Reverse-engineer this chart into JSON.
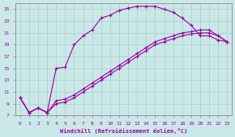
{
  "xlabel": "Windchill (Refroidissement éolien,°C)",
  "bg_color": "#cbe8e8",
  "line_color": "#990099",
  "grid_color": "#aacccc",
  "xlim": [
    -0.5,
    23.5
  ],
  "ylim": [
    7,
    26
  ],
  "xticks": [
    0,
    1,
    2,
    3,
    4,
    5,
    6,
    7,
    8,
    9,
    10,
    11,
    12,
    13,
    14,
    15,
    16,
    17,
    18,
    19,
    20,
    21,
    22,
    23
  ],
  "yticks": [
    7,
    9,
    11,
    13,
    15,
    17,
    19,
    21,
    23,
    25
  ],
  "curve1_x": [
    0,
    1,
    2,
    3,
    4,
    5,
    6,
    7,
    8,
    9,
    10,
    11,
    12,
    13,
    14,
    15,
    16,
    17,
    18,
    19,
    20,
    21,
    22,
    23
  ],
  "curve1_y": [
    10,
    7.5,
    8.3,
    7.5,
    15,
    15.2,
    19,
    20.5,
    21.5,
    23.5,
    24,
    24.8,
    25.2,
    25.5,
    25.5,
    25.5,
    25.0,
    24.5,
    23.5,
    22.3,
    20.5,
    20.5,
    19.8,
    19.5
  ],
  "curve2_x": [
    0,
    1,
    2,
    3,
    4,
    5,
    6,
    7,
    8,
    9,
    10,
    11,
    12,
    13,
    14,
    15,
    16,
    17,
    18,
    19,
    20,
    21,
    22,
    23
  ],
  "curve2_y": [
    10,
    7.5,
    8.3,
    7.5,
    9.5,
    9.8,
    10.5,
    11.5,
    12.5,
    13.5,
    14.5,
    15.5,
    16.5,
    17.5,
    18.5,
    19.5,
    20.0,
    20.5,
    21.0,
    21.2,
    21.5,
    21.5,
    20.5,
    19.5
  ],
  "curve3_x": [
    0,
    1,
    2,
    3,
    4,
    5,
    6,
    7,
    8,
    9,
    10,
    11,
    12,
    13,
    14,
    15,
    16,
    17,
    18,
    19,
    20,
    21,
    22,
    23
  ],
  "curve3_y": [
    10,
    7.5,
    8.3,
    7.5,
    9.0,
    9.3,
    10.0,
    11.0,
    12.0,
    13.0,
    14.0,
    15.0,
    16.0,
    17.0,
    18.0,
    19.0,
    19.5,
    20.0,
    20.5,
    20.8,
    21.0,
    21.0,
    20.5,
    19.5
  ]
}
